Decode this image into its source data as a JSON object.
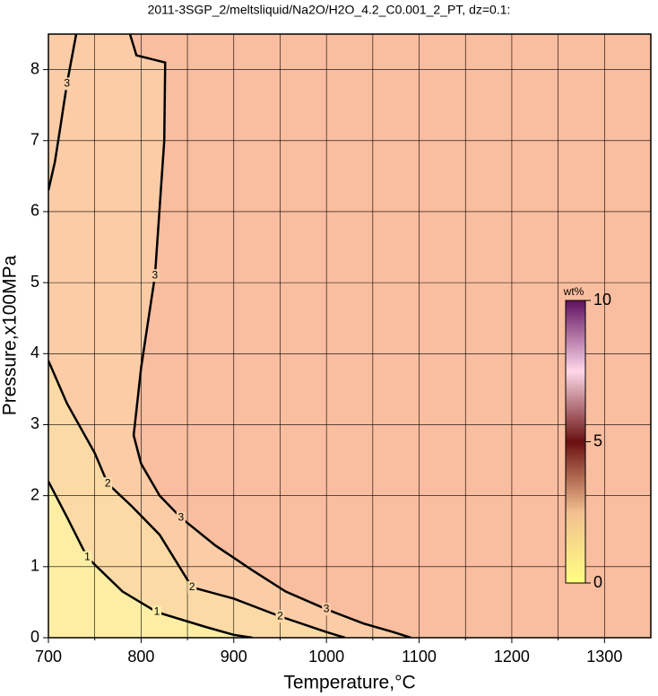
{
  "chart_data": {
    "type": "contour",
    "title": "2011-3SGP_2/meltsliquid/Na2O/H2O_4.2_C0.001_2_PT, dz=0.1:",
    "x_label": "Temperature,°C",
    "y_label": "Pressure,x100MPa",
    "xlim": [
      700,
      1350
    ],
    "ylim": [
      0,
      8.5
    ],
    "xticks": [
      700,
      800,
      900,
      1000,
      1100,
      1200,
      1300
    ],
    "xminor": [
      750,
      850,
      950,
      1050,
      1150,
      1250
    ],
    "yticks": [
      0,
      1,
      2,
      3,
      4,
      5,
      6,
      7,
      8
    ],
    "grid": true,
    "background_color": "#f9bd9f",
    "contours": [
      {
        "level": 3,
        "color": "#000000",
        "fill": "#fbcca6",
        "x": [
          788,
          795,
          826,
          825,
          815,
          800,
          792,
          800,
          820,
          843,
          880,
          920,
          956,
          1000,
          1040,
          1072,
          1091
        ],
        "y": [
          8.5,
          8.2,
          8.1,
          7.0,
          5.1,
          3.8,
          2.85,
          2.45,
          2.0,
          1.69,
          1.3,
          0.95,
          0.65,
          0.4,
          0.2,
          0.08,
          0
        ]
      },
      {
        "level": 3,
        "color": "#000000",
        "fill": null,
        "x": [
          700,
          707,
          713,
          720,
          730
        ],
        "y": [
          6.3,
          6.7,
          7.2,
          7.8,
          8.5
        ]
      },
      {
        "level": 2,
        "color": "#000000",
        "fill": "#fcdaa6",
        "x": [
          700,
          720,
          750,
          764,
          790,
          820,
          855,
          900,
          950,
          1000,
          1020
        ],
        "y": [
          3.9,
          3.3,
          2.6,
          2.17,
          1.85,
          1.45,
          0.71,
          0.55,
          0.3,
          0.08,
          0
        ]
      },
      {
        "level": 1,
        "color": "#000000",
        "fill": "#fdeea4",
        "x": [
          700,
          720,
          742,
          780,
          817,
          870,
          900,
          920
        ],
        "y": [
          2.2,
          1.7,
          1.13,
          0.65,
          0.36,
          0.15,
          0.04,
          0
        ]
      }
    ],
    "colorbar": {
      "label": "wt%",
      "clim": [
        0,
        10
      ],
      "ticks": [
        0,
        5,
        10
      ]
    }
  }
}
